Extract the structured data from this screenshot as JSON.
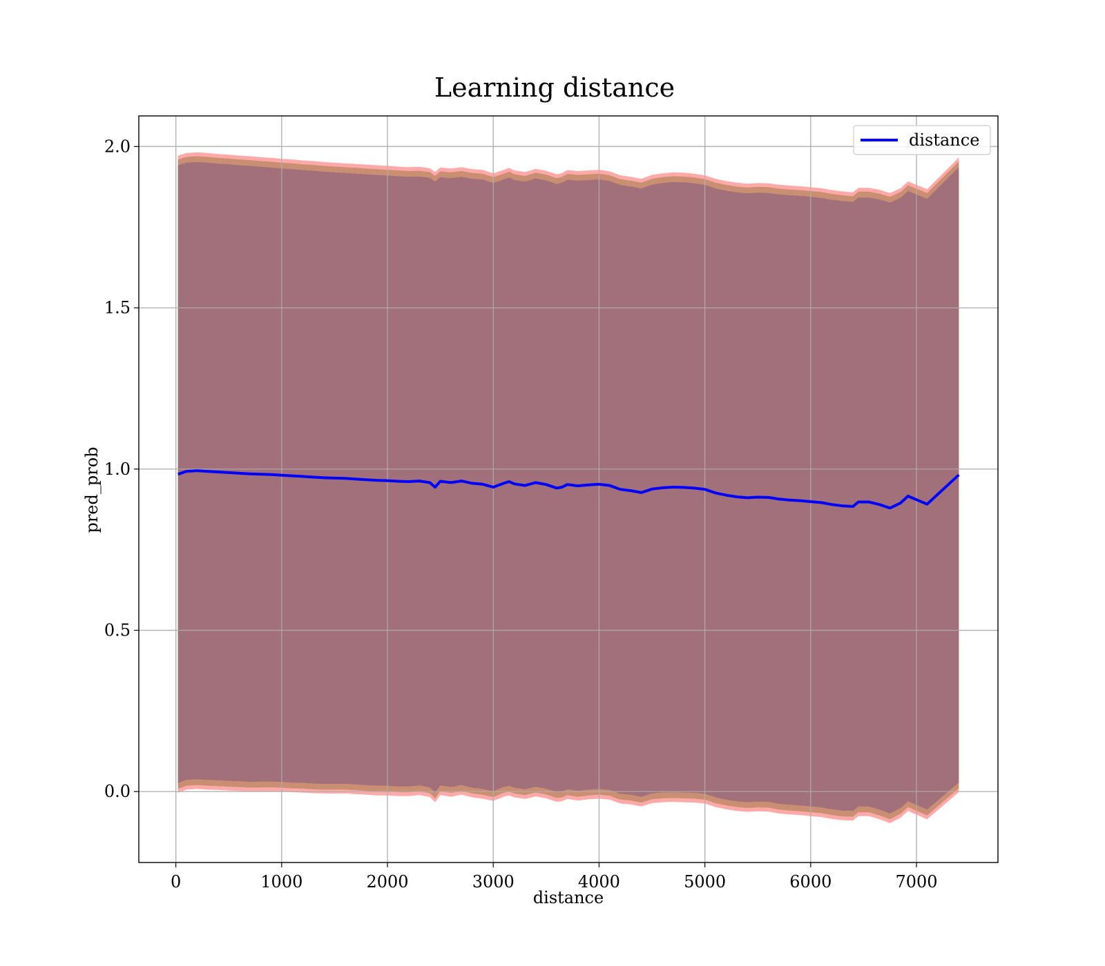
{
  "chart_data": {
    "type": "line",
    "title": "Learning distance",
    "xlabel": "distance",
    "ylabel": "pred_prob",
    "xlim": [
      -350,
      7770
    ],
    "ylim": [
      -0.22,
      2.095
    ],
    "x_ticks": [
      0,
      1000,
      2000,
      3000,
      4000,
      5000,
      6000,
      7000
    ],
    "y_ticks": [
      0.0,
      0.5,
      1.0,
      1.5,
      2.0
    ],
    "x_tick_labels": [
      "0",
      "1000",
      "2000",
      "3000",
      "4000",
      "5000",
      "6000",
      "7000"
    ],
    "y_tick_labels": [
      "0.0",
      "0.5",
      "1.0",
      "1.5",
      "2.0"
    ],
    "grid": true,
    "legend": {
      "placement": "top-right",
      "entries": [
        "distance"
      ]
    },
    "colors": {
      "line": "#0000ff",
      "band_outer": "#ff9a9a",
      "band_mid": "#c48b6c",
      "band_inner": "#a1707a"
    },
    "series": [
      {
        "name": "distance",
        "x": [
          20,
          100,
          200,
          300,
          400,
          500,
          600,
          700,
          800,
          900,
          1000,
          1100,
          1200,
          1300,
          1400,
          1500,
          1600,
          1700,
          1800,
          1900,
          2000,
          2100,
          2200,
          2300,
          2400,
          2450,
          2500,
          2600,
          2700,
          2800,
          2900,
          3000,
          3100,
          3150,
          3200,
          3300,
          3400,
          3500,
          3600,
          3650,
          3700,
          3800,
          3900,
          4000,
          4100,
          4200,
          4300,
          4400,
          4500,
          4600,
          4700,
          4800,
          4900,
          5000,
          5100,
          5200,
          5300,
          5400,
          5500,
          5600,
          5700,
          5800,
          5900,
          6000,
          6100,
          6200,
          6300,
          6400,
          6450,
          6550,
          6650,
          6750,
          6850,
          6920,
          7100,
          7400
        ],
        "values": [
          0.984,
          0.993,
          0.995,
          0.993,
          0.991,
          0.989,
          0.987,
          0.985,
          0.984,
          0.983,
          0.981,
          0.979,
          0.977,
          0.975,
          0.973,
          0.972,
          0.971,
          0.969,
          0.967,
          0.965,
          0.964,
          0.962,
          0.961,
          0.963,
          0.958,
          0.944,
          0.962,
          0.958,
          0.963,
          0.956,
          0.953,
          0.944,
          0.956,
          0.961,
          0.954,
          0.949,
          0.958,
          0.952,
          0.941,
          0.944,
          0.952,
          0.948,
          0.951,
          0.953,
          0.949,
          0.937,
          0.933,
          0.927,
          0.938,
          0.942,
          0.944,
          0.943,
          0.941,
          0.937,
          0.926,
          0.919,
          0.914,
          0.911,
          0.913,
          0.912,
          0.907,
          0.904,
          0.902,
          0.899,
          0.896,
          0.89,
          0.886,
          0.884,
          0.898,
          0.898,
          0.89,
          0.879,
          0.895,
          0.916,
          0.891,
          0.982
        ]
      }
    ],
    "bands": [
      {
        "label": "outer",
        "upper": [
          1.972,
          1.98,
          1.982,
          1.98,
          1.977,
          1.975,
          1.972,
          1.97,
          1.967,
          1.965,
          1.962,
          1.96,
          1.957,
          1.955,
          1.952,
          1.95,
          1.948,
          1.946,
          1.944,
          1.942,
          1.94,
          1.938,
          1.936,
          1.937,
          1.933,
          1.921,
          1.935,
          1.932,
          1.936,
          1.93,
          1.928,
          1.917,
          1.928,
          1.934,
          1.926,
          1.921,
          1.931,
          1.925,
          1.914,
          1.918,
          1.927,
          1.924,
          1.926,
          1.928,
          1.923,
          1.911,
          1.906,
          1.9,
          1.912,
          1.917,
          1.92,
          1.919,
          1.916,
          1.911,
          1.9,
          1.893,
          1.888,
          1.885,
          1.887,
          1.886,
          1.882,
          1.879,
          1.877,
          1.874,
          1.871,
          1.865,
          1.861,
          1.858,
          1.872,
          1.872,
          1.866,
          1.856,
          1.871,
          1.892,
          1.868,
          1.966
        ],
        "lower": [
          -0.004,
          0.006,
          0.008,
          0.006,
          0.005,
          0.003,
          0.002,
          0.0,
          0.001,
          0.001,
          0.0,
          -0.002,
          -0.003,
          -0.005,
          -0.006,
          -0.006,
          -0.006,
          -0.008,
          -0.01,
          -0.012,
          -0.012,
          -0.014,
          -0.014,
          -0.011,
          -0.017,
          -0.033,
          -0.011,
          -0.016,
          -0.01,
          -0.018,
          -0.022,
          -0.029,
          -0.016,
          -0.012,
          -0.018,
          -0.023,
          -0.015,
          -0.021,
          -0.032,
          -0.03,
          -0.023,
          -0.028,
          -0.024,
          -0.022,
          -0.025,
          -0.037,
          -0.04,
          -0.046,
          -0.036,
          -0.033,
          -0.032,
          -0.033,
          -0.034,
          -0.037,
          -0.048,
          -0.055,
          -0.06,
          -0.063,
          -0.061,
          -0.062,
          -0.068,
          -0.071,
          -0.073,
          -0.076,
          -0.079,
          -0.085,
          -0.089,
          -0.09,
          -0.076,
          -0.076,
          -0.086,
          -0.098,
          -0.081,
          -0.06,
          -0.086,
          -0.002
        ]
      },
      {
        "label": "middle",
        "upper": [
          1.96,
          1.968,
          1.97,
          1.968,
          1.965,
          1.963,
          1.96,
          1.958,
          1.955,
          1.953,
          1.95,
          1.948,
          1.945,
          1.943,
          1.94,
          1.938,
          1.936,
          1.934,
          1.932,
          1.93,
          1.928,
          1.926,
          1.924,
          1.925,
          1.921,
          1.909,
          1.923,
          1.92,
          1.924,
          1.918,
          1.916,
          1.905,
          1.916,
          1.922,
          1.914,
          1.909,
          1.919,
          1.913,
          1.902,
          1.906,
          1.915,
          1.912,
          1.914,
          1.916,
          1.911,
          1.899,
          1.894,
          1.888,
          1.9,
          1.905,
          1.908,
          1.907,
          1.904,
          1.899,
          1.888,
          1.881,
          1.876,
          1.873,
          1.875,
          1.874,
          1.87,
          1.867,
          1.865,
          1.862,
          1.859,
          1.853,
          1.849,
          1.846,
          1.86,
          1.86,
          1.854,
          1.844,
          1.859,
          1.88,
          1.856,
          1.954
        ],
        "lower": [
          0.008,
          0.018,
          0.02,
          0.018,
          0.017,
          0.015,
          0.014,
          0.012,
          0.013,
          0.013,
          0.012,
          0.01,
          0.009,
          0.007,
          0.006,
          0.006,
          0.006,
          0.004,
          0.002,
          0.0,
          0.0,
          -0.002,
          -0.002,
          0.001,
          -0.005,
          -0.021,
          0.001,
          -0.004,
          0.002,
          -0.006,
          -0.01,
          -0.017,
          -0.004,
          0.0,
          -0.006,
          -0.011,
          -0.003,
          -0.009,
          -0.02,
          -0.018,
          -0.011,
          -0.016,
          -0.012,
          -0.01,
          -0.013,
          -0.025,
          -0.028,
          -0.034,
          -0.024,
          -0.021,
          -0.02,
          -0.021,
          -0.022,
          -0.025,
          -0.036,
          -0.043,
          -0.048,
          -0.051,
          -0.049,
          -0.05,
          -0.056,
          -0.059,
          -0.061,
          -0.064,
          -0.067,
          -0.073,
          -0.077,
          -0.078,
          -0.064,
          -0.064,
          -0.074,
          -0.086,
          -0.069,
          -0.048,
          -0.074,
          0.01
        ]
      },
      {
        "label": "inner",
        "upper": [
          1.942,
          1.95,
          1.952,
          1.95,
          1.947,
          1.945,
          1.942,
          1.94,
          1.937,
          1.935,
          1.932,
          1.93,
          1.927,
          1.925,
          1.922,
          1.92,
          1.918,
          1.916,
          1.914,
          1.912,
          1.91,
          1.908,
          1.906,
          1.907,
          1.903,
          1.891,
          1.905,
          1.902,
          1.906,
          1.9,
          1.898,
          1.887,
          1.898,
          1.904,
          1.896,
          1.891,
          1.901,
          1.895,
          1.884,
          1.888,
          1.897,
          1.894,
          1.896,
          1.898,
          1.893,
          1.881,
          1.876,
          1.87,
          1.882,
          1.887,
          1.89,
          1.889,
          1.886,
          1.881,
          1.87,
          1.863,
          1.858,
          1.855,
          1.857,
          1.856,
          1.852,
          1.849,
          1.847,
          1.844,
          1.841,
          1.835,
          1.831,
          1.828,
          1.842,
          1.842,
          1.836,
          1.826,
          1.841,
          1.862,
          1.838,
          1.936
        ],
        "lower": [
          0.026,
          0.036,
          0.038,
          0.036,
          0.035,
          0.033,
          0.032,
          0.03,
          0.031,
          0.031,
          0.03,
          0.028,
          0.027,
          0.025,
          0.024,
          0.024,
          0.024,
          0.022,
          0.02,
          0.018,
          0.018,
          0.016,
          0.016,
          0.019,
          0.013,
          -0.003,
          0.019,
          0.014,
          0.02,
          0.012,
          0.008,
          0.001,
          0.014,
          0.018,
          0.012,
          0.007,
          0.015,
          0.009,
          -0.002,
          0.0,
          0.007,
          0.002,
          0.006,
          0.008,
          0.005,
          -0.007,
          -0.01,
          -0.016,
          -0.006,
          -0.003,
          -0.002,
          -0.003,
          -0.004,
          -0.007,
          -0.018,
          -0.025,
          -0.03,
          -0.033,
          -0.031,
          -0.032,
          -0.038,
          -0.041,
          -0.043,
          -0.046,
          -0.049,
          -0.055,
          -0.059,
          -0.06,
          -0.046,
          -0.046,
          -0.056,
          -0.068,
          -0.051,
          -0.03,
          -0.056,
          0.028
        ]
      }
    ]
  }
}
